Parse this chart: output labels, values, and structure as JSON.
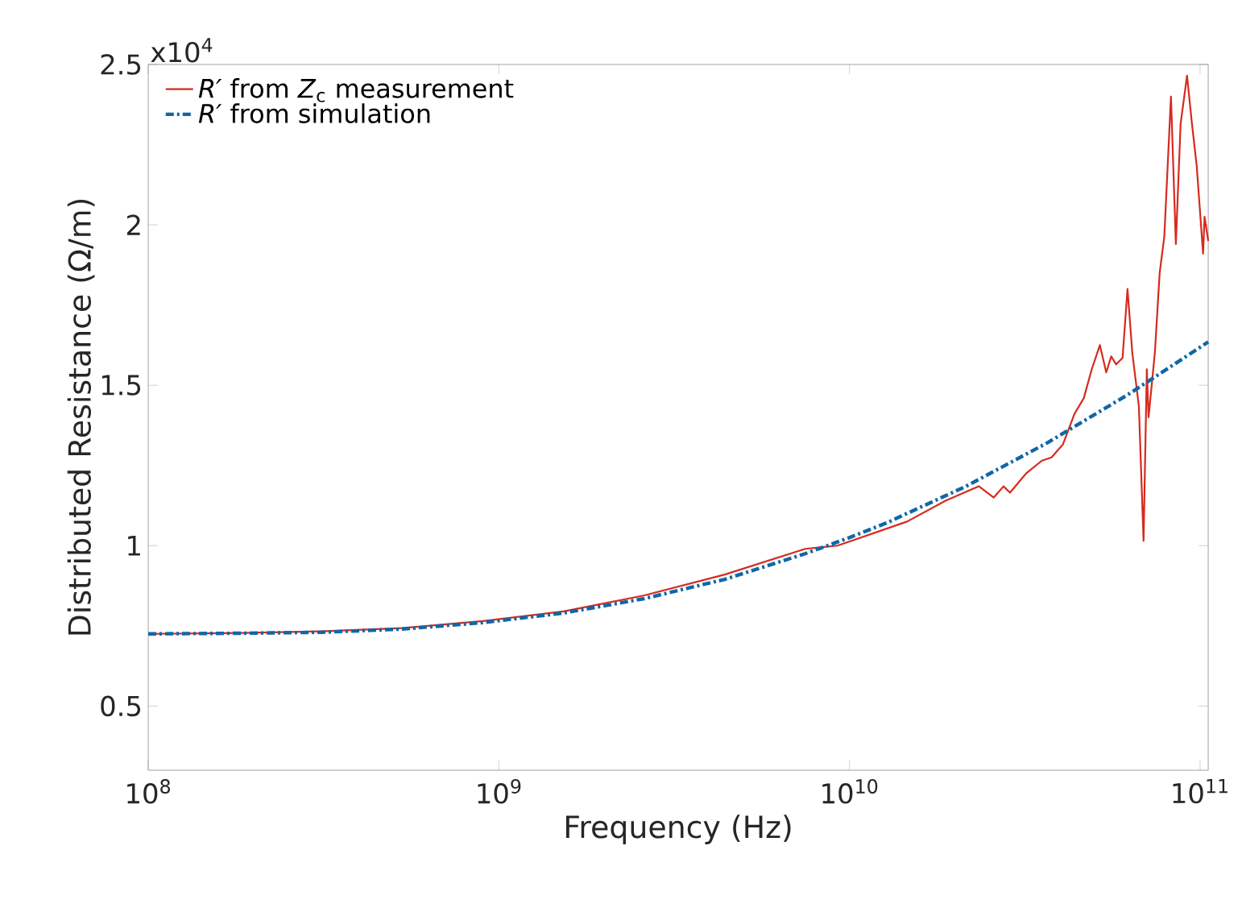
{
  "chart_data": {
    "type": "line",
    "xlabel": "Frequency (Hz)",
    "ylabel": "Distributed Resistance (Ω/m)",
    "log": "x",
    "xlim": [
      100000000.0,
      105500000000.0
    ],
    "ylim": [
      0.3,
      2.5
    ],
    "xticks": [
      {
        "value": 100000000.0,
        "label": "10$^{8}$"
      },
      {
        "value": 1000000000.0,
        "label": "10$^{9}$"
      },
      {
        "value": 10000000000.0,
        "label": "10$^{10}$"
      },
      {
        "value": 100000000000.0,
        "label": "10$^{11}$"
      }
    ],
    "yticks": [
      0.5,
      1,
      1.5,
      2,
      2.5
    ],
    "annotations": [
      "x10$^{4}$"
    ],
    "legend": "top left",
    "grid": false,
    "marker": "none",
    "series": [
      {
        "name": "*R′* from *Z*$_{c}$ measurement",
        "color": "#d62a1e",
        "line_style": "solid",
        "x": [
          100000000.0,
          185000000.0,
          313000000.0,
          530000000.0,
          900000000.0,
          1530000000.0,
          2600000000.0,
          4410000000.0,
          7480000000.0,
          9250000000.0,
          14600000000.0,
          18800000000.0,
          23400000000.0,
          25800000000.0,
          27500000000.0,
          28700000000.0,
          31900000000.0,
          35400000000.0,
          37700000000.0,
          40600000000.0,
          43800000000.0,
          46600000000.0,
          49100000000.0,
          51800000000.0,
          54000000000.0,
          55800000000.0,
          57600000000.0,
          60100000000.0,
          62100000000.0,
          64100000000.0,
          66900000000.0,
          69000000000.0,
          70500000000.0,
          71300000000.0,
          74300000000.0,
          76700000000.0,
          79100000000.0,
          82600000000.0,
          85300000000.0,
          88000000000.0,
          91800000000.0,
          94800000000.0,
          97800000000.0,
          102000000000.0,
          103000000000.0,
          105500000000.0
        ],
        "values": [
          0.725,
          0.728,
          0.733,
          0.743,
          0.765,
          0.795,
          0.845,
          0.91,
          0.99,
          1.0,
          1.075,
          1.14,
          1.185,
          1.15,
          1.185,
          1.165,
          1.225,
          1.265,
          1.275,
          1.315,
          1.41,
          1.46,
          1.55,
          1.625,
          1.54,
          1.59,
          1.565,
          1.585,
          1.8,
          1.6,
          1.435,
          1.015,
          1.55,
          1.4,
          1.6,
          1.85,
          1.965,
          2.4,
          1.94,
          2.315,
          2.465,
          2.315,
          2.185,
          1.91,
          2.025,
          1.95
        ]
      },
      {
        "name": "*R′* from simulation",
        "color": "#0f67a7",
        "line_style": "dashdot",
        "x": [
          100000000.0,
          185000000.0,
          313000000.0,
          530000000.0,
          900000000.0,
          1530000000.0,
          2600000000.0,
          4410000000.0,
          7480000000.0,
          10000000000.0,
          12700000000.0,
          21500000000.0,
          36600000000.0,
          62100000000.0,
          105500000000.0
        ],
        "values": [
          0.725,
          0.727,
          0.73,
          0.74,
          0.76,
          0.79,
          0.835,
          0.895,
          0.975,
          1.025,
          1.07,
          1.185,
          1.32,
          1.47,
          1.635
        ]
      }
    ]
  }
}
